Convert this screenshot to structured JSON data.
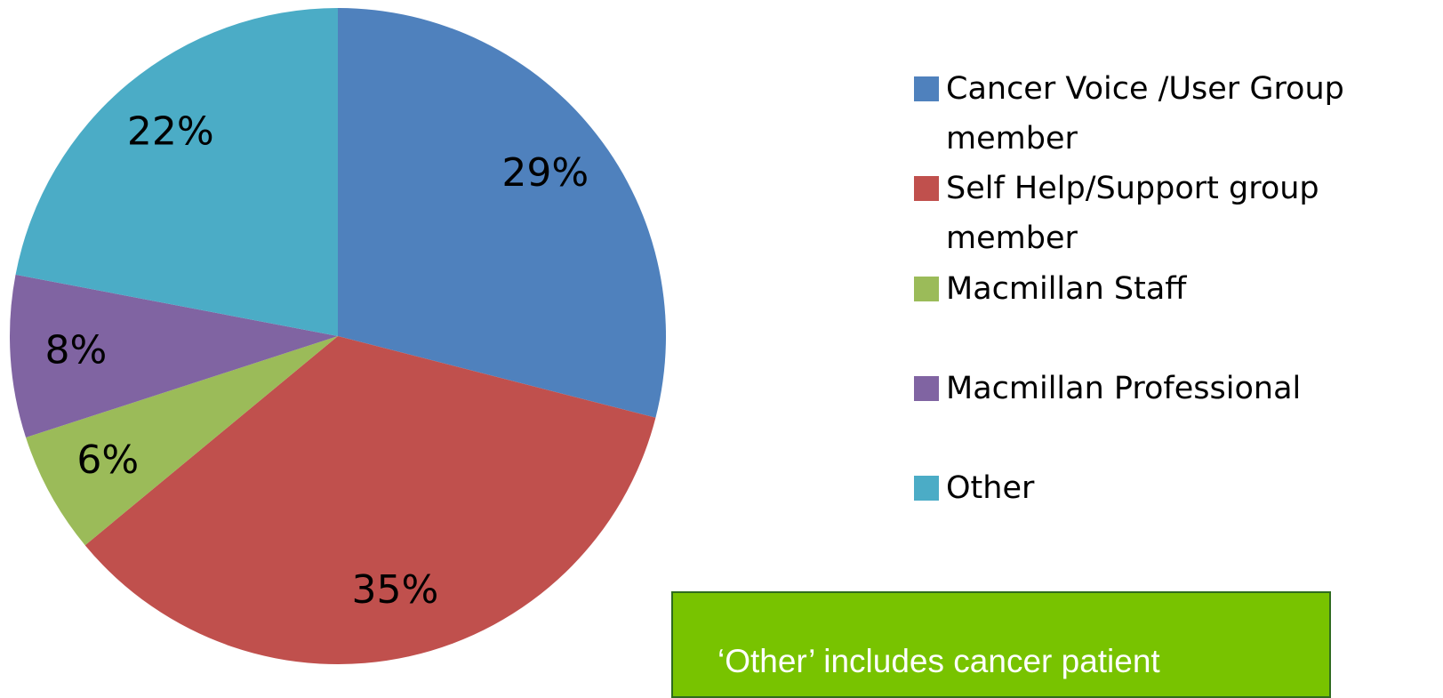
{
  "chart_data": {
    "type": "pie",
    "categories": [
      "Cancer Voice /User Group member",
      "Self Help/Support group member",
      "Macmillan Staff",
      "Macmillan Professional",
      "Other"
    ],
    "values": [
      29,
      35,
      6,
      8,
      22
    ],
    "value_labels": [
      "29%",
      "35%",
      "6%",
      "8%",
      "22%"
    ],
    "colors": [
      "#4F81BD",
      "#C0504D",
      "#9BBB59",
      "#8064A2",
      "#4BACC6"
    ],
    "legend": "right",
    "annotation": "‘Other’ includes cancer patient"
  }
}
